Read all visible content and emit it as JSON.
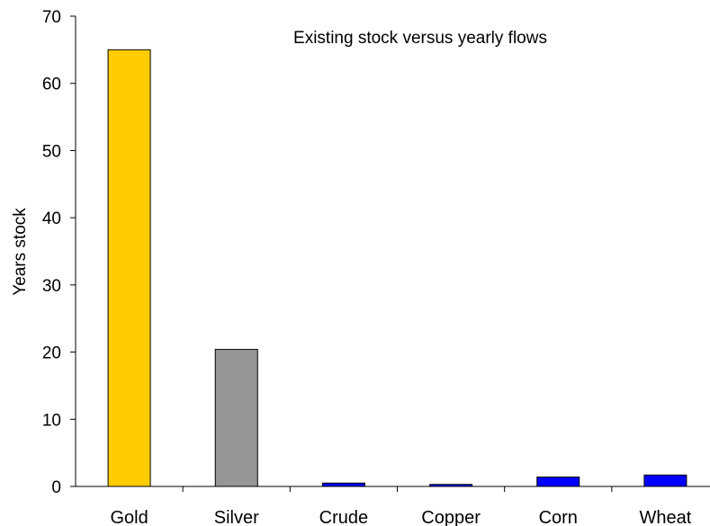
{
  "chart_data": {
    "type": "bar",
    "title": "Existing stock versus yearly flows",
    "ylabel": "Years stock",
    "xlabel": "",
    "categories": [
      "Gold",
      "Silver",
      "Crude",
      "Copper",
      "Corn",
      "Wheat"
    ],
    "values": [
      65,
      20.4,
      0.5,
      0.3,
      1.4,
      1.7
    ],
    "colors": [
      "#FFCC00",
      "#969696",
      "#0000FF",
      "#0000FF",
      "#0000FF",
      "#0000FF"
    ],
    "ylim": [
      0,
      70
    ],
    "yticks": [
      0,
      10,
      20,
      30,
      40,
      50,
      60,
      70
    ],
    "grid": false,
    "legend": "none"
  }
}
